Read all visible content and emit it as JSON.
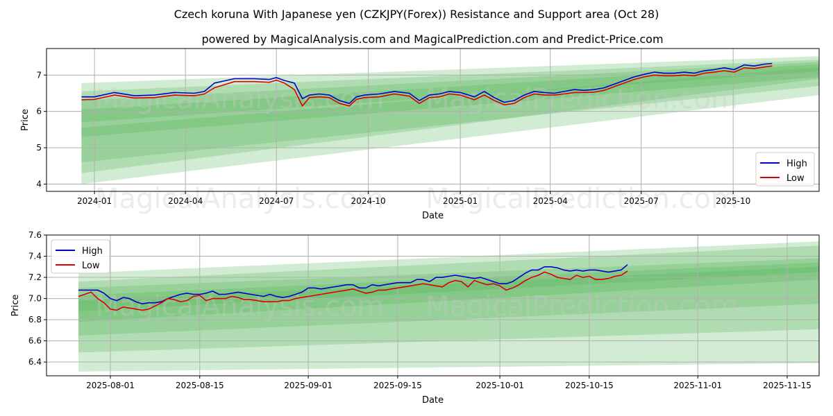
{
  "title": "Czech koruna With Japanese yen (CZKJPY(Forex)) Resistance and Support area (Oct 28)",
  "subtitle": "powered by MagicalAnalysis.com and MagicalPrediction.com and Predict-Price.com",
  "watermark": {
    "left": "MagicalAnalysis.com",
    "right": "MagicalPrediction.com"
  },
  "colors": {
    "high": "#0000cc",
    "low": "#dd0000",
    "band": "#4caf50",
    "grid": "#b0b0b0"
  },
  "chart_data": [
    {
      "type": "line",
      "title": "",
      "xlabel": "Date",
      "ylabel": "Price",
      "x_ticks": [
        "2024-01",
        "2024-04",
        "2024-07",
        "2024-10",
        "2025-01",
        "2025-04",
        "2025-07",
        "2025-10"
      ],
      "x_tick_values": [
        0,
        91,
        182,
        274,
        366,
        456,
        547,
        639
      ],
      "x_range": [
        -48,
        725
      ],
      "x_data_range": [
        -13,
        678
      ],
      "ylim": [
        3.8,
        7.73
      ],
      "y_ticks": [
        4,
        5,
        6,
        7
      ],
      "legend": [
        "High",
        "Low"
      ],
      "legend_position": "lower-right",
      "grid": true,
      "series": [
        {
          "name": "High",
          "x": [
            -13,
            0,
            20,
            40,
            60,
            80,
            100,
            110,
            120,
            140,
            160,
            175,
            182,
            190,
            200,
            208,
            215,
            225,
            235,
            245,
            255,
            262,
            270,
            285,
            300,
            315,
            325,
            335,
            345,
            355,
            366,
            380,
            390,
            400,
            410,
            420,
            430,
            440,
            450,
            460,
            470,
            480,
            490,
            500,
            510,
            520,
            530,
            540,
            550,
            560,
            570,
            580,
            590,
            600,
            610,
            620,
            630,
            640,
            650,
            660,
            670,
            678
          ],
          "values": [
            6.4,
            6.4,
            6.52,
            6.43,
            6.45,
            6.52,
            6.5,
            6.55,
            6.78,
            6.9,
            6.9,
            6.88,
            6.93,
            6.85,
            6.78,
            6.35,
            6.45,
            6.48,
            6.45,
            6.3,
            6.22,
            6.4,
            6.45,
            6.48,
            6.55,
            6.5,
            6.3,
            6.45,
            6.48,
            6.55,
            6.52,
            6.4,
            6.55,
            6.38,
            6.25,
            6.3,
            6.45,
            6.55,
            6.52,
            6.5,
            6.55,
            6.6,
            6.58,
            6.6,
            6.65,
            6.75,
            6.85,
            6.95,
            7.02,
            7.08,
            7.05,
            7.05,
            7.08,
            7.05,
            7.12,
            7.15,
            7.2,
            7.15,
            7.28,
            7.25,
            7.3,
            7.32
          ]
        },
        {
          "name": "Low",
          "x": [
            -13,
            0,
            20,
            40,
            60,
            80,
            100,
            110,
            120,
            140,
            160,
            175,
            182,
            190,
            200,
            208,
            215,
            225,
            235,
            245,
            255,
            262,
            270,
            285,
            300,
            315,
            325,
            335,
            345,
            355,
            366,
            380,
            390,
            400,
            410,
            420,
            430,
            440,
            450,
            460,
            470,
            480,
            490,
            500,
            510,
            520,
            530,
            540,
            550,
            560,
            570,
            580,
            590,
            600,
            610,
            620,
            630,
            640,
            650,
            660,
            670,
            678
          ],
          "values": [
            6.32,
            6.33,
            6.45,
            6.37,
            6.38,
            6.45,
            6.43,
            6.48,
            6.65,
            6.82,
            6.82,
            6.8,
            6.86,
            6.78,
            6.6,
            6.15,
            6.38,
            6.4,
            6.38,
            6.22,
            6.15,
            6.33,
            6.38,
            6.4,
            6.48,
            6.42,
            6.22,
            6.38,
            6.4,
            6.48,
            6.45,
            6.32,
            6.45,
            6.3,
            6.18,
            6.22,
            6.38,
            6.48,
            6.45,
            6.45,
            6.48,
            6.52,
            6.52,
            6.53,
            6.58,
            6.68,
            6.78,
            6.88,
            6.95,
            7.0,
            6.98,
            6.98,
            7.0,
            6.98,
            7.05,
            7.08,
            7.12,
            7.08,
            7.2,
            7.18,
            7.22,
            7.25
          ]
        }
      ],
      "bands": [
        {
          "x": [
            -13,
            725
          ],
          "upper": [
            6.78,
            7.52
          ],
          "lower": [
            4.0,
            6.45
          ]
        },
        {
          "x": [
            -13,
            725
          ],
          "upper": [
            6.55,
            7.42
          ],
          "lower": [
            4.6,
            6.7
          ]
        },
        {
          "x": [
            -13,
            725
          ],
          "upper": [
            6.3,
            7.36
          ],
          "lower": [
            5.3,
            6.95
          ]
        },
        {
          "x": [
            -13,
            725
          ],
          "upper": [
            6.05,
            7.3
          ],
          "lower": [
            5.7,
            7.1
          ]
        },
        {
          "x": [
            -13,
            725
          ],
          "upper": [
            5.55,
            7.22
          ],
          "lower": [
            4.3,
            6.9
          ]
        }
      ]
    },
    {
      "type": "line",
      "title": "",
      "xlabel": "Date",
      "ylabel": "Price",
      "x_ticks": [
        "2025-08-01",
        "2025-08-15",
        "2025-09-01",
        "2025-09-15",
        "2025-10-01",
        "2025-10-15",
        "2025-11-01",
        "2025-11-15"
      ],
      "x_tick_values": [
        7,
        21,
        38,
        52,
        68,
        82,
        99,
        113
      ],
      "x_range": [
        -3,
        118
      ],
      "x_data_range": [
        2,
        88
      ],
      "ylim": [
        6.27,
        7.6
      ],
      "y_ticks": [
        6.4,
        6.6,
        6.8,
        7.0,
        7.2,
        7.4,
        7.6
      ],
      "legend": [
        "High",
        "Low"
      ],
      "legend_position": "upper-left",
      "grid": true,
      "series": [
        {
          "name": "High",
          "x": [
            2,
            4,
            5,
            6,
            7,
            8,
            9,
            10,
            11,
            12,
            13,
            14,
            15,
            16,
            17,
            18,
            19,
            20,
            21,
            22,
            23,
            24,
            25,
            26,
            27,
            28,
            29,
            30,
            31,
            32,
            33,
            34,
            35,
            36,
            37,
            38,
            39,
            40,
            41,
            42,
            43,
            44,
            45,
            46,
            47,
            48,
            49,
            50,
            51,
            52,
            53,
            54,
            55,
            56,
            57,
            58,
            59,
            60,
            61,
            62,
            63,
            64,
            65,
            66,
            67,
            68,
            69,
            70,
            71,
            72,
            73,
            74,
            75,
            76,
            77,
            78,
            79,
            80,
            81,
            82,
            83,
            84,
            85,
            86,
            87,
            88
          ],
          "values": [
            7.08,
            7.08,
            7.08,
            7.05,
            7.0,
            6.98,
            7.01,
            7.0,
            6.97,
            6.95,
            6.96,
            6.96,
            6.97,
            7.0,
            7.02,
            7.04,
            7.05,
            7.04,
            7.04,
            7.05,
            7.07,
            7.04,
            7.04,
            7.05,
            7.06,
            7.05,
            7.04,
            7.03,
            7.02,
            7.04,
            7.02,
            7.01,
            7.02,
            7.04,
            7.06,
            7.1,
            7.1,
            7.09,
            7.1,
            7.11,
            7.12,
            7.13,
            7.13,
            7.1,
            7.1,
            7.13,
            7.12,
            7.13,
            7.14,
            7.15,
            7.15,
            7.15,
            7.18,
            7.18,
            7.16,
            7.2,
            7.2,
            7.21,
            7.22,
            7.21,
            7.2,
            7.19,
            7.2,
            7.18,
            7.16,
            7.14,
            7.14,
            7.16,
            7.2,
            7.24,
            7.27,
            7.27,
            7.3,
            7.3,
            7.29,
            7.27,
            7.26,
            7.27,
            7.26,
            7.27,
            7.27,
            7.26,
            7.25,
            7.26,
            7.27,
            7.32
          ]
        },
        {
          "name": "Low",
          "x": [
            2,
            4,
            5,
            6,
            7,
            8,
            9,
            10,
            11,
            12,
            13,
            14,
            15,
            16,
            17,
            18,
            19,
            20,
            21,
            22,
            23,
            24,
            25,
            26,
            27,
            28,
            29,
            30,
            31,
            32,
            33,
            34,
            35,
            36,
            37,
            38,
            39,
            40,
            41,
            42,
            43,
            44,
            45,
            46,
            47,
            48,
            49,
            50,
            51,
            52,
            53,
            54,
            55,
            56,
            57,
            58,
            59,
            60,
            61,
            62,
            63,
            64,
            65,
            66,
            67,
            68,
            69,
            70,
            71,
            72,
            73,
            74,
            75,
            76,
            77,
            78,
            79,
            80,
            81,
            82,
            83,
            84,
            85,
            86,
            87,
            88
          ],
          "values": [
            7.02,
            7.06,
            7.0,
            6.96,
            6.9,
            6.89,
            6.92,
            6.91,
            6.9,
            6.89,
            6.9,
            6.93,
            6.96,
            7.0,
            6.99,
            6.97,
            6.98,
            7.02,
            7.03,
            6.98,
            7.0,
            7.0,
            7.0,
            7.02,
            7.01,
            6.99,
            6.99,
            6.98,
            6.97,
            6.97,
            6.97,
            6.98,
            6.98,
            7.0,
            7.01,
            7.02,
            7.03,
            7.04,
            7.05,
            7.06,
            7.07,
            7.08,
            7.09,
            7.07,
            7.05,
            7.06,
            7.08,
            7.08,
            7.09,
            7.1,
            7.11,
            7.12,
            7.13,
            7.14,
            7.13,
            7.12,
            7.11,
            7.15,
            7.17,
            7.16,
            7.11,
            7.17,
            7.15,
            7.13,
            7.14,
            7.12,
            7.08,
            7.1,
            7.13,
            7.17,
            7.2,
            7.22,
            7.25,
            7.23,
            7.2,
            7.19,
            7.18,
            7.22,
            7.2,
            7.21,
            7.18,
            7.18,
            7.19,
            7.21,
            7.22,
            7.26
          ]
        }
      ],
      "bands": [
        {
          "x": [
            2,
            118
          ],
          "upper": [
            7.24,
            7.54
          ],
          "lower": [
            6.31,
            6.39
          ]
        },
        {
          "x": [
            2,
            118
          ],
          "upper": [
            7.16,
            7.5
          ],
          "lower": [
            6.49,
            6.71
          ]
        },
        {
          "x": [
            2,
            118
          ],
          "upper": [
            7.1,
            7.38
          ],
          "lower": [
            6.65,
            6.95
          ]
        },
        {
          "x": [
            2,
            118
          ],
          "upper": [
            7.03,
            7.34
          ],
          "lower": [
            6.78,
            7.18
          ]
        },
        {
          "x": [
            2,
            118
          ],
          "upper": [
            6.98,
            7.3
          ],
          "lower": [
            6.88,
            7.25
          ]
        }
      ]
    }
  ]
}
